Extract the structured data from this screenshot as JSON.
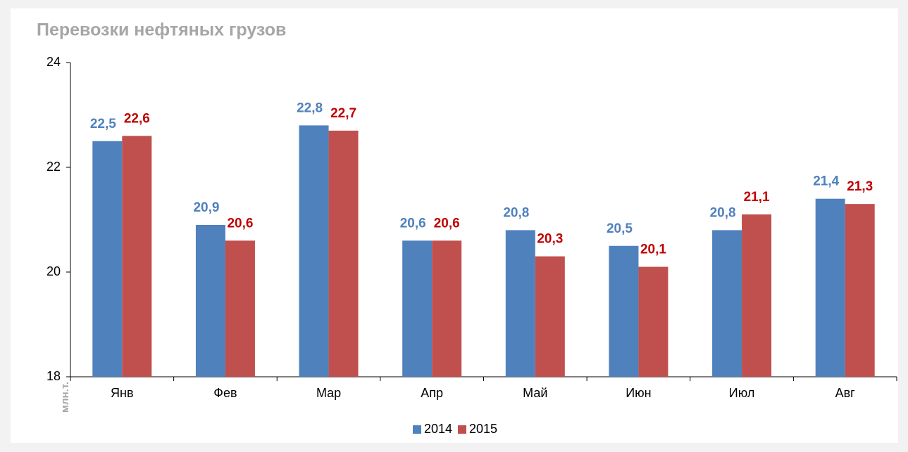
{
  "chart_data": {
    "type": "bar",
    "title": "Перевозки нефтяных грузов",
    "y_label": "млн.т.",
    "categories": [
      "Янв",
      "Фев",
      "Мар",
      "Апр",
      "Май",
      "Июн",
      "Июл",
      "Авг"
    ],
    "series": [
      {
        "name": "2014",
        "color": "#4f81bd",
        "label_color": "#4f81bd",
        "values": [
          22.5,
          20.9,
          22.8,
          20.6,
          20.8,
          20.5,
          20.8,
          21.4
        ],
        "value_labels": [
          "22,5",
          "20,9",
          "22,8",
          "20,6",
          "20,8",
          "20,5",
          "20,8",
          "21,4"
        ]
      },
      {
        "name": "2015",
        "color": "#c0504d",
        "label_color": "#c00000",
        "values": [
          22.6,
          20.6,
          22.7,
          20.6,
          20.3,
          20.1,
          21.1,
          21.3
        ],
        "value_labels": [
          "22,6",
          "20,6",
          "22,7",
          "20,6",
          "20,3",
          "20,1",
          "21,1",
          "21,3"
        ]
      }
    ],
    "ylim": [
      18,
      24
    ],
    "yticks": [
      18,
      20,
      22,
      24
    ],
    "grid": false,
    "legend": "bottom"
  }
}
